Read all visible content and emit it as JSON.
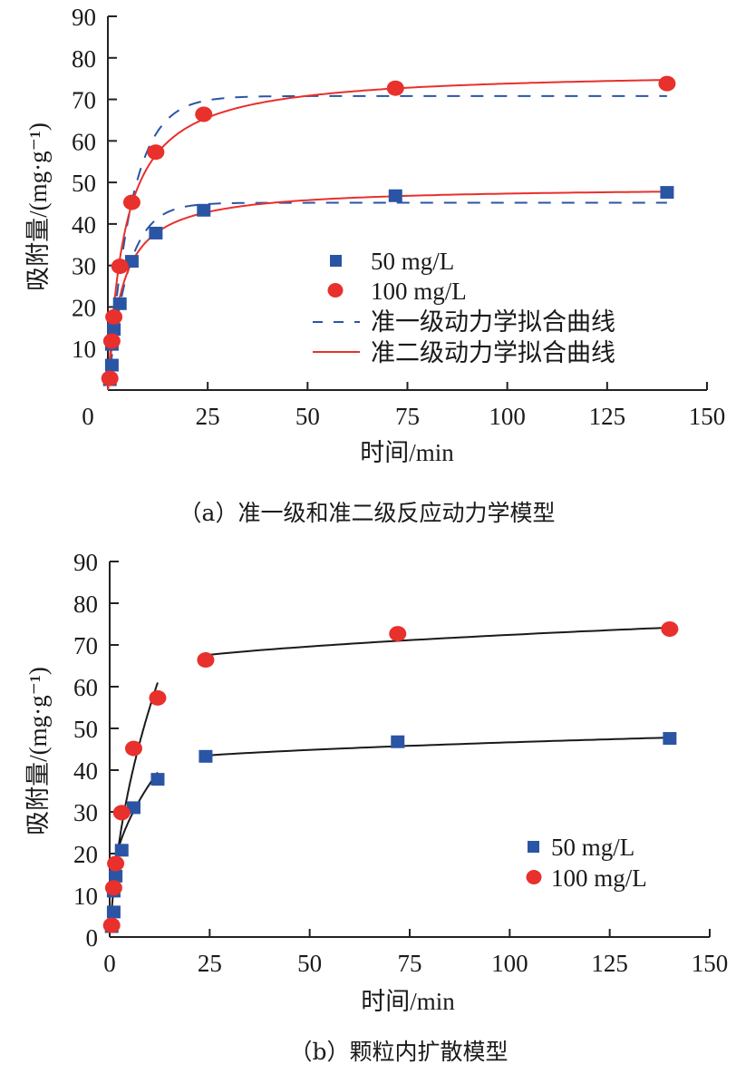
{
  "chart_data": [
    {
      "panel": "a",
      "type": "scatter",
      "caption": "（a）准一级和准二级反应动力学模型",
      "xlabel": "时间/min",
      "ylabel": "吸附量/(mg·g⁻¹)",
      "xlim": [
        0,
        150
      ],
      "ylim": [
        0,
        90
      ],
      "xticks": [
        0,
        25,
        50,
        75,
        100,
        125,
        150
      ],
      "yticks": [
        10,
        20,
        30,
        40,
        50,
        60,
        70,
        80,
        90
      ],
      "grid": false,
      "legend_position": "center-right",
      "legend": [
        "50 mg/L",
        "100 mg/L",
        "准一级动力学拟合曲线",
        "准二级动力学拟合曲线"
      ],
      "series": [
        {
          "name": "50 mg/L",
          "marker": "square",
          "color": "#2a55a5",
          "x": [
            0.5,
            1,
            1,
            1.5,
            3,
            6,
            12,
            24,
            72,
            140
          ],
          "y": [
            2.5,
            6,
            11,
            14.6,
            20.8,
            31,
            37.8,
            43.3,
            46.8,
            47.6
          ]
        },
        {
          "name": "100 mg/L",
          "marker": "circle",
          "color": "#e8302c",
          "x": [
            0.5,
            1,
            1.5,
            3,
            6,
            12,
            24,
            72,
            140
          ],
          "y": [
            2.8,
            11.8,
            17.6,
            29.8,
            45.2,
            57.3,
            66.4,
            72.7,
            73.8
          ]
        }
      ],
      "fits": [
        {
          "name": "准一级动力学拟合曲线",
          "model": "pseudo-first-order",
          "style": "dashed",
          "color": "#2a55a5",
          "curves": [
            {
              "for": "50 mg/L",
              "qe": 45.1,
              "k1": 0.2
            },
            {
              "for": "100 mg/L",
              "qe": 70.8,
              "k1": 0.17
            }
          ]
        },
        {
          "name": "准二级动力学拟合曲线",
          "model": "pseudo-second-order",
          "style": "solid",
          "color": "#e8302c",
          "curves": [
            {
              "for": "50 mg/L",
              "qe": 49,
              "k2": 0.00571
            },
            {
              "for": "100 mg/L",
              "qe": 77,
              "k2": 0.003
            }
          ]
        }
      ]
    },
    {
      "panel": "b",
      "type": "scatter",
      "caption": "（b）颗粒内扩散模型",
      "xlabel": "时间/min",
      "ylabel": "吸附量/(mg·g⁻¹)",
      "xlim": [
        0,
        150
      ],
      "ylim": [
        0,
        90
      ],
      "xticks": [
        0,
        25,
        50,
        75,
        100,
        125,
        150
      ],
      "yticks": [
        0,
        10,
        20,
        30,
        40,
        50,
        60,
        70,
        80,
        90
      ],
      "grid": false,
      "legend_position": "center-right",
      "legend": [
        "50 mg/L",
        "100 mg/L"
      ],
      "series": [
        {
          "name": "50 mg/L",
          "marker": "square",
          "color": "#2a55a5",
          "x": [
            0.5,
            1,
            1,
            1.5,
            3,
            6,
            12,
            24,
            72,
            140
          ],
          "y": [
            2.5,
            6,
            11,
            14.6,
            20.8,
            31,
            37.8,
            43.3,
            46.8,
            47.6
          ]
        },
        {
          "name": "100 mg/L",
          "marker": "circle",
          "color": "#e8302c",
          "x": [
            0.5,
            1,
            1.5,
            3,
            6,
            12,
            24,
            72,
            140
          ],
          "y": [
            2.8,
            11.8,
            17.6,
            29.8,
            45.2,
            57.3,
            66.4,
            72.7,
            73.8
          ]
        }
      ],
      "fits": [
        {
          "name": "intraparticle-diffusion",
          "model": "q = a*sqrt(t) + b",
          "style": "solid",
          "color": "#1a1a1a",
          "segments": [
            {
              "for": "100 mg/L",
              "t_range": [
                0.25,
                12
              ],
              "a": 19.9,
              "b": -7.95
            },
            {
              "for": "50 mg/L",
              "t_range": [
                0.8,
                12
              ],
              "a": 9.14,
              "b": 7.8
            },
            {
              "for": "100 mg/L",
              "t_range": [
                24,
                140
              ],
              "a": 0.952,
              "b": 62.9
            },
            {
              "for": "50 mg/L",
              "t_range": [
                24,
                140
              ],
              "a": 0.62,
              "b": 40.46
            }
          ]
        }
      ]
    }
  ]
}
